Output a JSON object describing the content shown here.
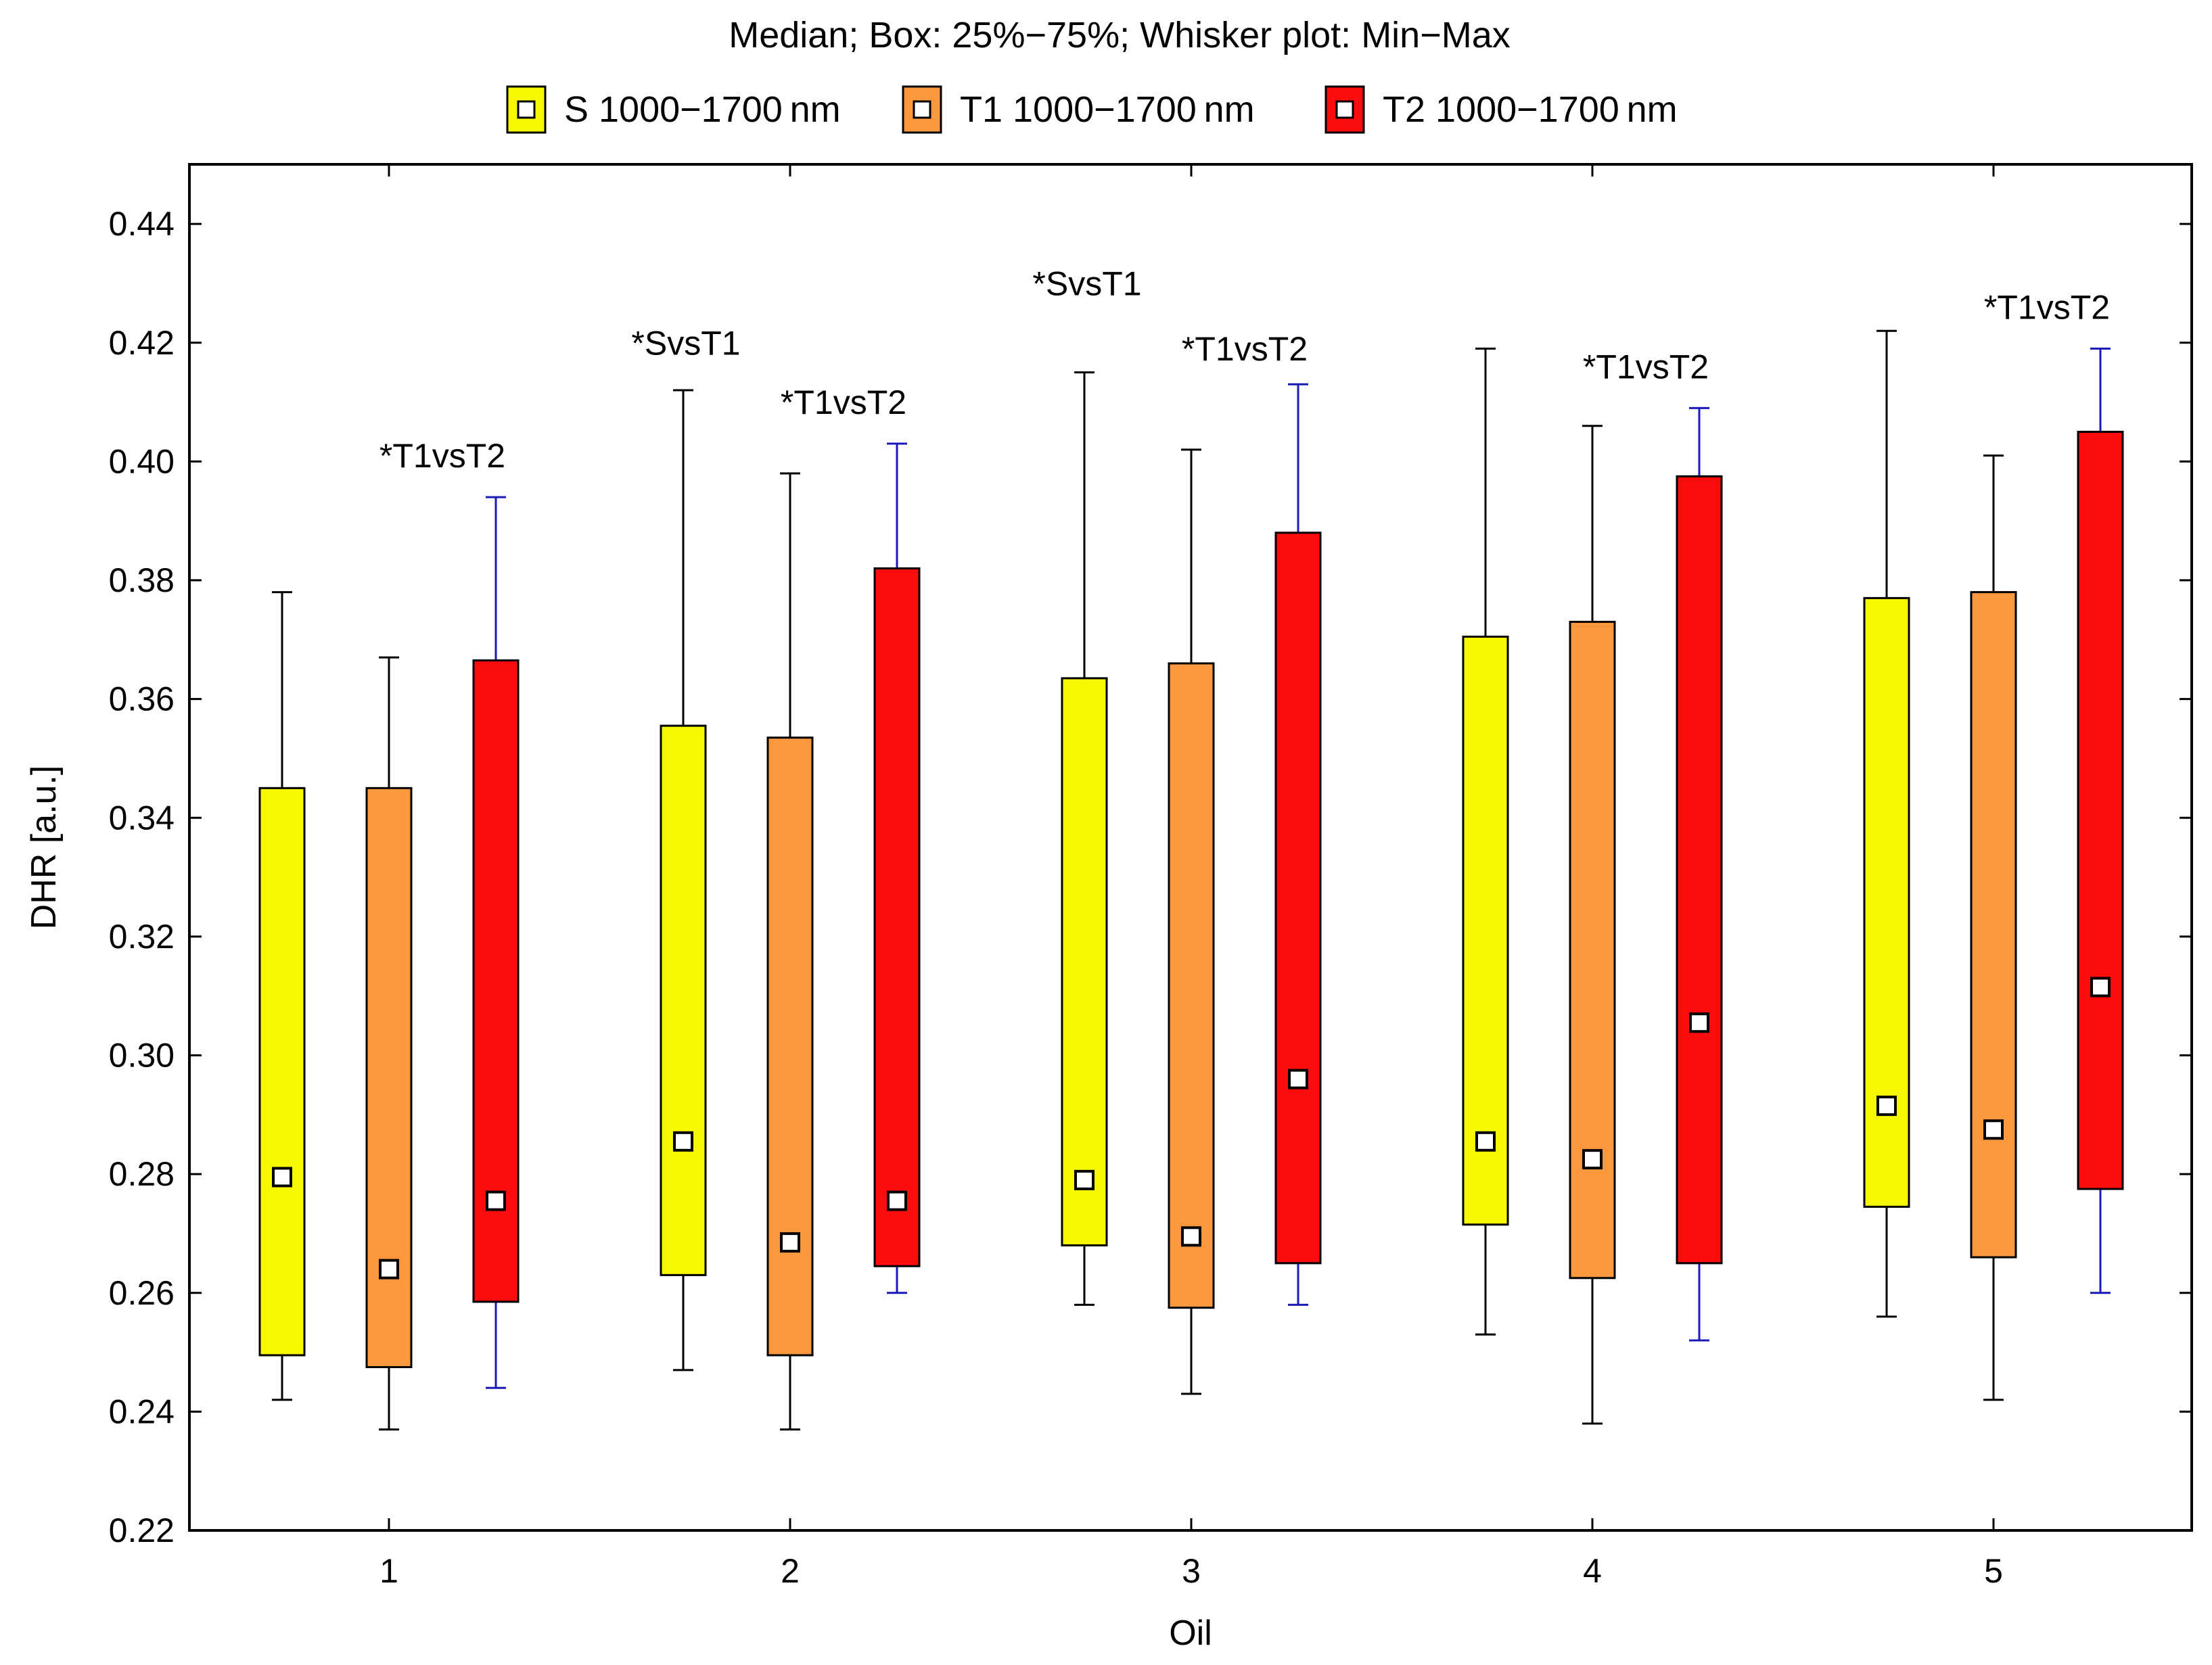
{
  "chart_data": {
    "type": "boxplot",
    "title": "Median; Box: 25%−75%; Whisker plot: Min−Max",
    "xlabel": "Oil",
    "ylabel": "DHR [a.u.]",
    "ylim": [
      0.22,
      0.45
    ],
    "yticks": [
      "0.22",
      "0.24",
      "0.26",
      "0.28",
      "0.30",
      "0.32",
      "0.34",
      "0.36",
      "0.38",
      "0.40",
      "0.42",
      "0.44"
    ],
    "categories": [
      "1",
      "2",
      "3",
      "4",
      "5"
    ],
    "grid": false,
    "legend_position": "top",
    "series": [
      {
        "name": "S 1000−1700 nm",
        "color": "#f7f700",
        "whisker_color": "#000000",
        "boxes": [
          {
            "min": 0.242,
            "q1": 0.2495,
            "median": 0.2795,
            "q3": 0.345,
            "max": 0.378
          },
          {
            "min": 0.247,
            "q1": 0.263,
            "median": 0.2855,
            "q3": 0.3555,
            "max": 0.412
          },
          {
            "min": 0.258,
            "q1": 0.268,
            "median": 0.279,
            "q3": 0.3635,
            "max": 0.415
          },
          {
            "min": 0.253,
            "q1": 0.2715,
            "median": 0.2855,
            "q3": 0.3705,
            "max": 0.419
          },
          {
            "min": 0.256,
            "q1": 0.2745,
            "median": 0.2915,
            "q3": 0.377,
            "max": 0.422
          }
        ]
      },
      {
        "name": "T1 1000−1700 nm",
        "color": "#fb983e",
        "whisker_color": "#000000",
        "boxes": [
          {
            "min": 0.237,
            "q1": 0.2475,
            "median": 0.264,
            "q3": 0.345,
            "max": 0.367
          },
          {
            "min": 0.237,
            "q1": 0.2495,
            "median": 0.2685,
            "q3": 0.3535,
            "max": 0.398
          },
          {
            "min": 0.243,
            "q1": 0.2575,
            "median": 0.2695,
            "q3": 0.366,
            "max": 0.402
          },
          {
            "min": 0.238,
            "q1": 0.2625,
            "median": 0.2825,
            "q3": 0.373,
            "max": 0.406
          },
          {
            "min": 0.242,
            "q1": 0.266,
            "median": 0.2875,
            "q3": 0.378,
            "max": 0.401
          }
        ]
      },
      {
        "name": "T2 1000−1700 nm",
        "color": "#fc0c0c",
        "whisker_color": "#1a1ab8",
        "boxes": [
          {
            "min": 0.244,
            "q1": 0.2585,
            "median": 0.2755,
            "q3": 0.3665,
            "max": 0.394
          },
          {
            "min": 0.26,
            "q1": 0.2645,
            "median": 0.2755,
            "q3": 0.382,
            "max": 0.403
          },
          {
            "min": 0.258,
            "q1": 0.265,
            "median": 0.296,
            "q3": 0.388,
            "max": 0.413
          },
          {
            "min": 0.252,
            "q1": 0.265,
            "median": 0.3055,
            "q3": 0.3975,
            "max": 0.409
          },
          {
            "min": 0.26,
            "q1": 0.2775,
            "median": 0.3115,
            "q3": 0.405,
            "max": 0.419
          }
        ]
      }
    ],
    "annotations": [
      {
        "text": "*T1vsT2",
        "category": "1",
        "y": 0.399
      },
      {
        "text": "*SvsT1",
        "category": "2",
        "series": "S 1000−1700 nm",
        "y": 0.418
      },
      {
        "text": "*T1vsT2",
        "category": "2",
        "y": 0.408
      },
      {
        "text": "*SvsT1",
        "category": "3",
        "series": "S 1000−1700 nm",
        "y": 0.428
      },
      {
        "text": "*T1vsT2",
        "category": "3",
        "y": 0.417
      },
      {
        "text": "*T1vsT2",
        "category": "4",
        "y": 0.414
      },
      {
        "text": "*T1vsT2",
        "category": "5",
        "y": 0.424
      }
    ]
  }
}
